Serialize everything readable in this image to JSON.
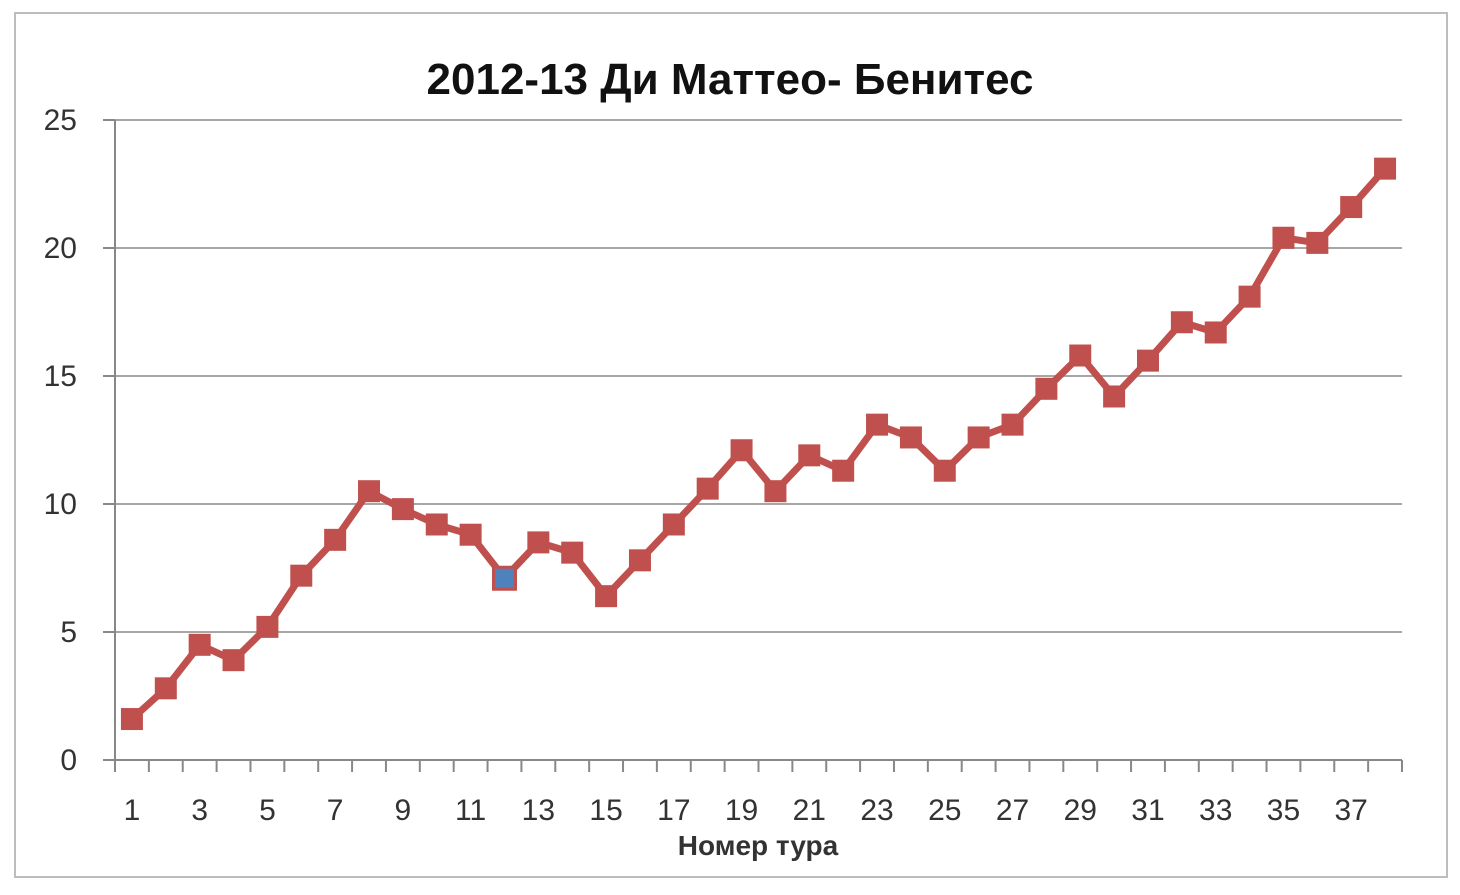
{
  "chart_data": {
    "type": "line",
    "title": "2012-13 Ди Маттео- Бенитес",
    "xlabel": "Номер тура",
    "ylabel": "",
    "ylim": [
      0,
      25
    ],
    "yticks": [
      0,
      5,
      10,
      15,
      20,
      25
    ],
    "x": [
      1,
      2,
      3,
      4,
      5,
      6,
      7,
      8,
      9,
      10,
      11,
      12,
      13,
      14,
      15,
      16,
      17,
      18,
      19,
      20,
      21,
      22,
      23,
      24,
      25,
      26,
      27,
      28,
      29,
      30,
      31,
      32,
      33,
      34,
      35,
      36,
      37,
      38
    ],
    "xtick_labels": [
      "1",
      "3",
      "5",
      "7",
      "9",
      "11",
      "13",
      "15",
      "17",
      "19",
      "21",
      "23",
      "25",
      "27",
      "29",
      "31",
      "33",
      "35",
      "37"
    ],
    "grid": true,
    "legend": "none",
    "series": [
      {
        "color": "#c0504d",
        "values": [
          1.6,
          2.8,
          4.5,
          3.9,
          5.2,
          7.2,
          8.6,
          10.5,
          9.8,
          9.2,
          8.8,
          7.1,
          8.5,
          8.1,
          6.4,
          7.8,
          9.2,
          10.6,
          12.1,
          10.5,
          11.9,
          11.3,
          13.1,
          12.6,
          11.3,
          12.6,
          13.1,
          14.5,
          15.8,
          14.2,
          15.6,
          17.1,
          16.7,
          18.1,
          20.4,
          20.2,
          21.6,
          23.1
        ]
      }
    ],
    "highlight": {
      "x": 12,
      "color": "#4f81bd"
    },
    "grid_color": "#a6a6a6",
    "axis_color": "#888888"
  }
}
